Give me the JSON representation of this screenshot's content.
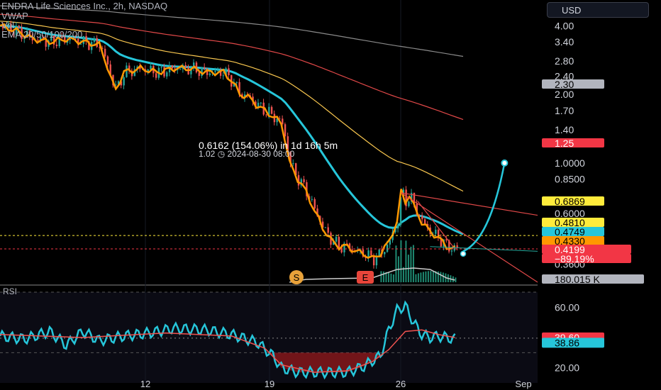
{
  "header": {
    "symbol_line": "ENDRA Life Sciences Inc., 2h, NASDAQ",
    "indicators": [
      "VWAP",
      "Vol",
      "EMA 20/50/100/200"
    ],
    "currency": "USD"
  },
  "rsi_pane": {
    "label": "RSI"
  },
  "measure": {
    "line1": "0.6162 (154.06%) in 1d 16h 5m",
    "line2": "1.02  ◷  2024-08-30  08:00"
  },
  "markers": [
    {
      "letter": "S",
      "color": "#e8a23a"
    },
    {
      "letter": "E",
      "color": "#e8453a"
    }
  ],
  "colors": {
    "background": "#000000",
    "candle_up": "#26a69a",
    "candle_down": "#ef5350",
    "ema20": "#26c6da",
    "ema50": "#f9c74f",
    "ema100": "#e04848",
    "ema200": "#8a8a8a",
    "vwap": "#ff9800",
    "rsi": "#26c6da",
    "rsi_ma": "#ef5350",
    "projection": "#26c6da"
  },
  "chart_data": {
    "type": "candlestick",
    "scale": "log",
    "price_axis_ticks": [
      4.0,
      3.4,
      2.8,
      2.4,
      2.0,
      1.7,
      1.4,
      1.0,
      0.85,
      0.6,
      0.36
    ],
    "price_axis_labels": [
      "4.00",
      "3.40",
      "2.80",
      "2.40",
      "2.00",
      "1.70",
      "1.40",
      "1.0000",
      "0.8500",
      "0.6000",
      "0.3600"
    ],
    "x_ticks": [
      "12",
      "19",
      "26",
      "Sep"
    ],
    "price_tags": [
      {
        "label": "2.30",
        "color": "#b2b5be",
        "text_color": "#000000"
      },
      {
        "label": "1.25",
        "color": "#f23645",
        "text_color": "#ffffff"
      },
      {
        "label": "0.6869",
        "color": "#ffeb3b",
        "text_color": "#000000"
      },
      {
        "label": "0.4810",
        "color": "#ffeb3b",
        "text_color": "#000000"
      },
      {
        "label": "0.4749",
        "color": "#26c6da",
        "text_color": "#000000"
      },
      {
        "label": "0.4330",
        "color": "#ff9800",
        "text_color": "#000000"
      },
      {
        "label": "0.4199",
        "color": "#f23645",
        "text_color": "#ffffff"
      },
      {
        "label": "−89.19%",
        "color": "#f23645",
        "text_color": "#ffffff"
      },
      {
        "label": "180.015 K",
        "color": "#b2b5be",
        "text_color": "#000000"
      }
    ],
    "last_price": 0.4199,
    "change_percent": -89.19,
    "volume": "180.015 K",
    "ema_20_last": 0.4749,
    "vwap_last": 0.433,
    "ema_50_last": 0.6869,
    "ema_100_last": 1.25,
    "ema_200_last": 2.3,
    "target_price": 1.02,
    "target_date": "2024-08-30 08:00",
    "target_change": 0.6162,
    "target_change_percent": 154.06,
    "target_duration": "1d 16h 5m",
    "price_path": [
      [
        0,
        4.0
      ],
      [
        4,
        3.8
      ],
      [
        8,
        3.5
      ],
      [
        12,
        3.4
      ],
      [
        16,
        3.5
      ],
      [
        20,
        3.4
      ],
      [
        24,
        3.3
      ],
      [
        27,
        2.3
      ],
      [
        28,
        2.1
      ],
      [
        30,
        2.5
      ],
      [
        34,
        2.6
      ],
      [
        38,
        2.5
      ],
      [
        42,
        2.6
      ],
      [
        46,
        2.6
      ],
      [
        50,
        2.5
      ],
      [
        54,
        2.5
      ],
      [
        56,
        2.3
      ],
      [
        58,
        2.0
      ],
      [
        60,
        1.95
      ],
      [
        62,
        1.8
      ],
      [
        64,
        1.7
      ],
      [
        66,
        1.6
      ],
      [
        68,
        1.5
      ],
      [
        70,
        1.0
      ],
      [
        72,
        0.85
      ],
      [
        74,
        0.75
      ],
      [
        76,
        0.62
      ],
      [
        78,
        0.52
      ],
      [
        80,
        0.46
      ],
      [
        82,
        0.43
      ],
      [
        84,
        0.43
      ],
      [
        86,
        0.41
      ],
      [
        88,
        0.4
      ],
      [
        90,
        0.38
      ],
      [
        92,
        0.4
      ],
      [
        94,
        0.45
      ],
      [
        96,
        0.55
      ],
      [
        97,
        0.75
      ],
      [
        98,
        0.68
      ],
      [
        99,
        0.72
      ],
      [
        100,
        0.65
      ],
      [
        102,
        0.55
      ],
      [
        104,
        0.5
      ],
      [
        106,
        0.47
      ],
      [
        108,
        0.43
      ],
      [
        110,
        0.42
      ]
    ],
    "rsi_axis_ticks": [
      60.0,
      20.0
    ],
    "rsi_last": 38.86,
    "rsi_ma_last": 39.6,
    "rsi_path": [
      [
        0,
        41
      ],
      [
        6,
        39
      ],
      [
        12,
        44
      ],
      [
        16,
        35
      ],
      [
        20,
        44
      ],
      [
        24,
        38
      ],
      [
        30,
        41
      ],
      [
        36,
        43
      ],
      [
        42,
        46
      ],
      [
        50,
        45
      ],
      [
        56,
        42
      ],
      [
        62,
        37
      ],
      [
        66,
        28
      ],
      [
        68,
        20
      ],
      [
        72,
        17
      ],
      [
        78,
        17
      ],
      [
        84,
        17
      ],
      [
        88,
        21
      ],
      [
        92,
        28
      ],
      [
        94,
        45
      ],
      [
        96,
        58
      ],
      [
        98,
        61
      ],
      [
        100,
        50
      ],
      [
        102,
        42
      ],
      [
        104,
        40
      ],
      [
        106,
        41
      ],
      [
        110,
        39
      ]
    ],
    "rsi_ma_path": [
      [
        0,
        42
      ],
      [
        20,
        40
      ],
      [
        40,
        43
      ],
      [
        56,
        41
      ],
      [
        64,
        33
      ],
      [
        68,
        22
      ],
      [
        76,
        17
      ],
      [
        84,
        18
      ],
      [
        90,
        24
      ],
      [
        94,
        32
      ],
      [
        98,
        44
      ],
      [
        102,
        45
      ],
      [
        106,
        42
      ],
      [
        110,
        40
      ]
    ]
  }
}
